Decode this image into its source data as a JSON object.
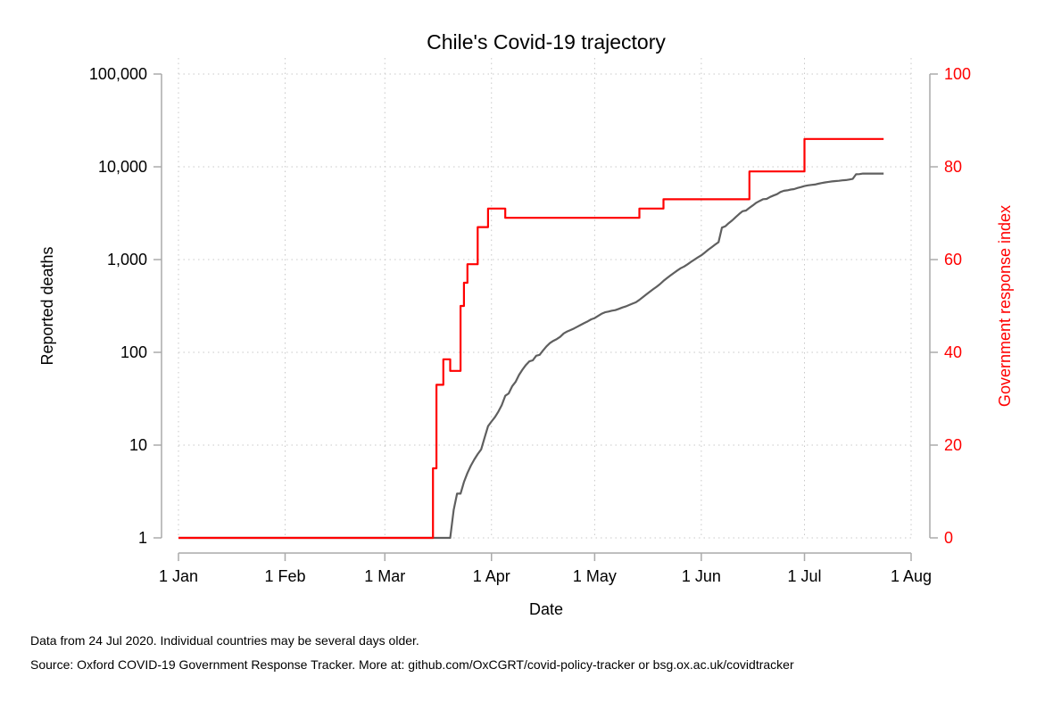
{
  "chart_data": {
    "type": "line",
    "title": "Chile's Covid-19 trajectory",
    "xlabel": "Date",
    "ylabel": "Reported deaths",
    "y2label": "Government response index",
    "x_ticks": [
      "1 Jan",
      "1 Feb",
      "1 Mar",
      "1 Apr",
      "1 May",
      "1 Jun",
      "1 Jul",
      "1 Aug"
    ],
    "x_tick_dates": [
      "2020-01-01",
      "2020-02-01",
      "2020-03-01",
      "2020-04-01",
      "2020-05-01",
      "2020-06-01",
      "2020-07-01",
      "2020-08-01"
    ],
    "xlim": [
      "2020-01-01",
      "2020-08-01"
    ],
    "y_ticks": [
      "1",
      "10",
      "100",
      "1,000",
      "10,000",
      "100,000"
    ],
    "y_tick_values": [
      1,
      10,
      100,
      1000,
      10000,
      100000
    ],
    "ylim": [
      1,
      100000
    ],
    "y_scale": "log",
    "y2_ticks": [
      "0",
      "20",
      "40",
      "60",
      "80",
      "100"
    ],
    "y2_tick_values": [
      0,
      20,
      40,
      60,
      80,
      100
    ],
    "y2lim": [
      0,
      100
    ],
    "grid": true,
    "colors": {
      "deaths": "#5f5f5f",
      "response": "#ff0000",
      "axis": "#aaaaaa",
      "grid": "#c8c8c8"
    },
    "series": [
      {
        "axis": "left",
        "color": "#5f5f5f",
        "step": false,
        "points": [
          [
            "2020-01-01",
            1
          ],
          [
            "2020-03-20",
            1
          ],
          [
            "2020-03-21",
            2
          ],
          [
            "2020-03-22",
            3
          ],
          [
            "2020-03-23",
            3
          ],
          [
            "2020-03-24",
            4
          ],
          [
            "2020-03-25",
            5
          ],
          [
            "2020-03-26",
            6
          ],
          [
            "2020-03-27",
            7
          ],
          [
            "2020-03-28",
            8
          ],
          [
            "2020-03-29",
            9
          ],
          [
            "2020-03-30",
            12
          ],
          [
            "2020-03-31",
            16
          ],
          [
            "2020-04-01",
            18
          ],
          [
            "2020-04-02",
            20
          ],
          [
            "2020-04-03",
            23
          ],
          [
            "2020-04-04",
            27
          ],
          [
            "2020-04-05",
            34
          ],
          [
            "2020-04-06",
            36
          ],
          [
            "2020-04-07",
            43
          ],
          [
            "2020-04-08",
            48
          ],
          [
            "2020-04-09",
            57
          ],
          [
            "2020-04-10",
            65
          ],
          [
            "2020-04-11",
            73
          ],
          [
            "2020-04-12",
            80
          ],
          [
            "2020-04-13",
            82
          ],
          [
            "2020-04-14",
            92
          ],
          [
            "2020-04-15",
            94
          ],
          [
            "2020-04-16",
            105
          ],
          [
            "2020-04-17",
            116
          ],
          [
            "2020-04-18",
            126
          ],
          [
            "2020-04-19",
            133
          ],
          [
            "2020-04-20",
            139
          ],
          [
            "2020-04-21",
            147
          ],
          [
            "2020-04-22",
            160
          ],
          [
            "2020-04-23",
            168
          ],
          [
            "2020-04-24",
            174
          ],
          [
            "2020-04-25",
            181
          ],
          [
            "2020-04-26",
            189
          ],
          [
            "2020-04-27",
            198
          ],
          [
            "2020-04-28",
            207
          ],
          [
            "2020-04-29",
            216
          ],
          [
            "2020-04-30",
            227
          ],
          [
            "2020-05-01",
            234
          ],
          [
            "2020-05-02",
            247
          ],
          [
            "2020-05-03",
            260
          ],
          [
            "2020-05-04",
            270
          ],
          [
            "2020-05-05",
            275
          ],
          [
            "2020-05-06",
            281
          ],
          [
            "2020-05-07",
            285
          ],
          [
            "2020-05-08",
            294
          ],
          [
            "2020-05-09",
            304
          ],
          [
            "2020-05-10",
            312
          ],
          [
            "2020-05-11",
            323
          ],
          [
            "2020-05-12",
            335
          ],
          [
            "2020-05-13",
            346
          ],
          [
            "2020-05-14",
            368
          ],
          [
            "2020-05-15",
            394
          ],
          [
            "2020-05-16",
            421
          ],
          [
            "2020-05-17",
            450
          ],
          [
            "2020-05-18",
            478
          ],
          [
            "2020-05-19",
            509
          ],
          [
            "2020-05-20",
            544
          ],
          [
            "2020-05-21",
            589
          ],
          [
            "2020-05-22",
            630
          ],
          [
            "2020-05-23",
            673
          ],
          [
            "2020-05-24",
            716
          ],
          [
            "2020-05-25",
            761
          ],
          [
            "2020-05-26",
            806
          ],
          [
            "2020-05-27",
            841
          ],
          [
            "2020-05-28",
            890
          ],
          [
            "2020-05-29",
            944
          ],
          [
            "2020-05-30",
            997
          ],
          [
            "2020-05-31",
            1054
          ],
          [
            "2020-06-01",
            1113
          ],
          [
            "2020-06-02",
            1188
          ],
          [
            "2020-06-03",
            1275
          ],
          [
            "2020-06-04",
            1356
          ],
          [
            "2020-06-05",
            1448
          ],
          [
            "2020-06-06",
            1541
          ],
          [
            "2020-06-07",
            2210
          ],
          [
            "2020-06-08",
            2290
          ],
          [
            "2020-06-09",
            2475
          ],
          [
            "2020-06-10",
            2648
          ],
          [
            "2020-06-11",
            2870
          ],
          [
            "2020-06-12",
            3101
          ],
          [
            "2020-06-13",
            3323
          ],
          [
            "2020-06-14",
            3383
          ],
          [
            "2020-06-15",
            3615
          ],
          [
            "2020-06-16",
            3841
          ],
          [
            "2020-06-17",
            4093
          ],
          [
            "2020-06-18",
            4295
          ],
          [
            "2020-06-19",
            4479
          ],
          [
            "2020-06-20",
            4505
          ],
          [
            "2020-06-21",
            4731
          ],
          [
            "2020-06-22",
            4903
          ],
          [
            "2020-06-23",
            5068
          ],
          [
            "2020-06-24",
            5347
          ],
          [
            "2020-06-25",
            5509
          ],
          [
            "2020-06-26",
            5575
          ],
          [
            "2020-06-27",
            5688
          ],
          [
            "2020-06-28",
            5753
          ],
          [
            "2020-06-29",
            5920
          ],
          [
            "2020-06-30",
            6051
          ],
          [
            "2020-07-01",
            6192
          ],
          [
            "2020-07-02",
            6308
          ],
          [
            "2020-07-03",
            6384
          ],
          [
            "2020-07-04",
            6434
          ],
          [
            "2020-07-05",
            6573
          ],
          [
            "2020-07-06",
            6682
          ],
          [
            "2020-07-07",
            6781
          ],
          [
            "2020-07-08",
            6881
          ],
          [
            "2020-07-09",
            6951
          ],
          [
            "2020-07-10",
            7024
          ],
          [
            "2020-07-11",
            7069
          ],
          [
            "2020-07-12",
            7144
          ],
          [
            "2020-07-13",
            7186
          ],
          [
            "2020-07-14",
            7290
          ],
          [
            "2020-07-15",
            7400
          ],
          [
            "2020-07-16",
            8300
          ],
          [
            "2020-07-17",
            8347
          ],
          [
            "2020-07-18",
            8445
          ],
          [
            "2020-07-19",
            8445
          ],
          [
            "2020-07-20",
            8445
          ],
          [
            "2020-07-21",
            8445
          ],
          [
            "2020-07-22",
            8445
          ],
          [
            "2020-07-23",
            8445
          ],
          [
            "2020-07-24",
            8445
          ]
        ]
      },
      {
        "axis": "right",
        "color": "#ff0000",
        "step": true,
        "points": [
          [
            "2020-01-01",
            0
          ],
          [
            "2020-03-13",
            0
          ],
          [
            "2020-03-15",
            15
          ],
          [
            "2020-03-16",
            33
          ],
          [
            "2020-03-17",
            33
          ],
          [
            "2020-03-18",
            38.5
          ],
          [
            "2020-03-19",
            38.5
          ],
          [
            "2020-03-20",
            36
          ],
          [
            "2020-03-22",
            36
          ],
          [
            "2020-03-23",
            50
          ],
          [
            "2020-03-24",
            55
          ],
          [
            "2020-03-25",
            59
          ],
          [
            "2020-03-26",
            59
          ],
          [
            "2020-03-27",
            59
          ],
          [
            "2020-03-28",
            67
          ],
          [
            "2020-03-30",
            67
          ],
          [
            "2020-03-31",
            71
          ],
          [
            "2020-04-04",
            71
          ],
          [
            "2020-04-05",
            69
          ],
          [
            "2020-05-13",
            69
          ],
          [
            "2020-05-14",
            71
          ],
          [
            "2020-05-20",
            71
          ],
          [
            "2020-05-21",
            73
          ],
          [
            "2020-06-14",
            73
          ],
          [
            "2020-06-15",
            79
          ],
          [
            "2020-06-30",
            79
          ],
          [
            "2020-07-01",
            86
          ],
          [
            "2020-07-24",
            86
          ]
        ]
      }
    ]
  },
  "notes": {
    "line1": "Data from 24 Jul 2020. Individual countries may be several days older.",
    "line2": "Source: Oxford COVID-19 Government Response Tracker. More at: github.com/OxCGRT/covid-policy-tracker or bsg.ox.ac.uk/covidtracker"
  }
}
